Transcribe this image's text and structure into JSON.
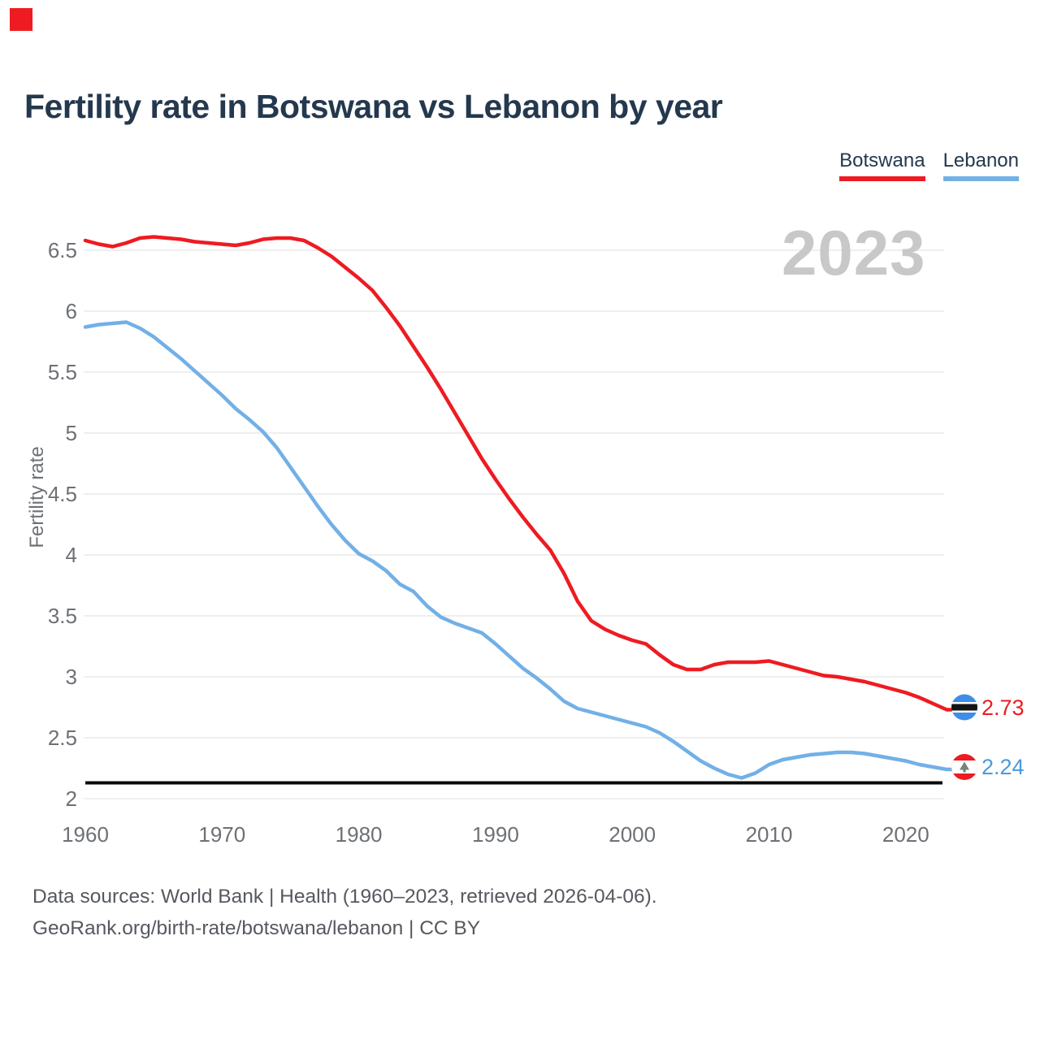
{
  "page": {
    "title": "Fertility rate in Botswana vs Lebanon by year",
    "watermark_year": "2023",
    "footer_line1": "Data sources: World Bank | Health (1960–2023, retrieved 2026-04-06).",
    "footer_line2": "GeoRank.org/birth-rate/botswana/lebanon | CC BY"
  },
  "colors": {
    "botswana_red": "#ee1b22",
    "lebanon_blue": "#72b0e6",
    "lebanon_value_text": "#4a99dd",
    "title_navy": "#24384e",
    "tick_gray": "#6d7075",
    "grid_gray": "#eaeaea",
    "watermark_gray": "#c8c8c8",
    "reference_black": "#0a0a0a"
  },
  "legend": [
    {
      "label": "Botswana",
      "color": "#ee1b22"
    },
    {
      "label": "Lebanon",
      "color": "#72b0e6"
    }
  ],
  "end_labels": [
    {
      "series": "Botswana",
      "text": "2.73",
      "value": 2.73,
      "color": "#ee1b22",
      "flag_icon": "botswana-flag-icon"
    },
    {
      "series": "Lebanon",
      "text": "2.24",
      "value": 2.24,
      "color": "#4a99dd",
      "flag_icon": "lebanon-flag-icon"
    }
  ],
  "chart_data": {
    "type": "line",
    "title": "Fertility rate in Botswana vs Lebanon by year",
    "ylabel": "Fertility rate",
    "xlabel": "",
    "ylim": [
      2,
      6.65
    ],
    "xlim": [
      1960,
      2023
    ],
    "grid": true,
    "legend_position": "top-right",
    "yticks": [
      6.5,
      6,
      5.5,
      5,
      4.5,
      4,
      3.5,
      3,
      2.5,
      2
    ],
    "xticks": [
      1960,
      1970,
      1980,
      1990,
      2000,
      2010,
      2020
    ],
    "reference_line": {
      "value": 2.13,
      "label": ""
    },
    "x": [
      1960,
      1961,
      1962,
      1963,
      1964,
      1965,
      1966,
      1967,
      1968,
      1969,
      1970,
      1971,
      1972,
      1973,
      1974,
      1975,
      1976,
      1977,
      1978,
      1979,
      1980,
      1981,
      1982,
      1983,
      1984,
      1985,
      1986,
      1987,
      1988,
      1989,
      1990,
      1991,
      1992,
      1993,
      1994,
      1995,
      1996,
      1997,
      1998,
      1999,
      2000,
      2001,
      2002,
      2003,
      2004,
      2005,
      2006,
      2007,
      2008,
      2009,
      2010,
      2011,
      2012,
      2013,
      2014,
      2015,
      2016,
      2017,
      2018,
      2019,
      2020,
      2021,
      2022,
      2023
    ],
    "series": [
      {
        "name": "Botswana",
        "color": "#ee1b22",
        "final_value": 2.73,
        "values": [
          6.58,
          6.55,
          6.53,
          6.56,
          6.6,
          6.61,
          6.6,
          6.59,
          6.57,
          6.56,
          6.55,
          6.54,
          6.56,
          6.59,
          6.6,
          6.6,
          6.58,
          6.52,
          6.45,
          6.36,
          6.27,
          6.17,
          6.03,
          5.88,
          5.71,
          5.54,
          5.36,
          5.17,
          4.98,
          4.79,
          4.62,
          4.46,
          4.31,
          4.17,
          4.04,
          3.85,
          3.62,
          3.46,
          3.39,
          3.34,
          3.3,
          3.27,
          3.18,
          3.1,
          3.06,
          3.06,
          3.1,
          3.12,
          3.12,
          3.12,
          3.13,
          3.1,
          3.07,
          3.04,
          3.01,
          3.0,
          2.98,
          2.96,
          2.93,
          2.9,
          2.87,
          2.83,
          2.78,
          2.73
        ]
      },
      {
        "name": "Lebanon",
        "color": "#72b0e6",
        "final_value": 2.24,
        "values": [
          5.87,
          5.89,
          5.9,
          5.91,
          5.86,
          5.79,
          5.7,
          5.61,
          5.51,
          5.41,
          5.31,
          5.2,
          5.11,
          5.01,
          4.88,
          4.72,
          4.56,
          4.4,
          4.25,
          4.12,
          4.01,
          3.95,
          3.87,
          3.76,
          3.7,
          3.58,
          3.49,
          3.44,
          3.4,
          3.36,
          3.27,
          3.17,
          3.07,
          2.99,
          2.9,
          2.8,
          2.74,
          2.71,
          2.68,
          2.65,
          2.62,
          2.59,
          2.54,
          2.47,
          2.39,
          2.31,
          2.25,
          2.2,
          2.17,
          2.21,
          2.28,
          2.32,
          2.34,
          2.36,
          2.37,
          2.38,
          2.38,
          2.37,
          2.35,
          2.33,
          2.31,
          2.28,
          2.26,
          2.24
        ]
      }
    ]
  }
}
